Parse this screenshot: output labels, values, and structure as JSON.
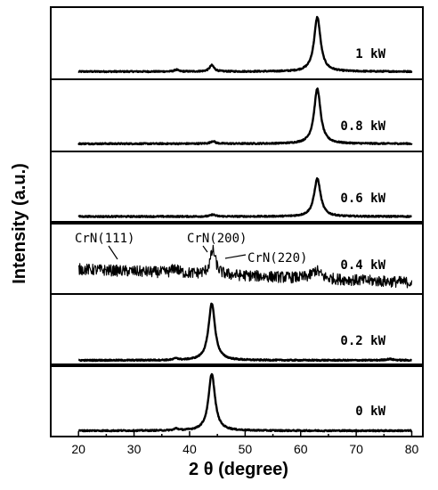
{
  "chart_data": {
    "type": "line",
    "title": "",
    "xlabel": "2 θ (degree)",
    "ylabel": "Intensity (a.u.)",
    "xlim": [
      15,
      82
    ],
    "xticks": [
      20,
      30,
      40,
      50,
      60,
      70,
      80
    ],
    "series": [
      {
        "name": "1 kW",
        "baseline": 0.08,
        "peaks": [
          {
            "center": 63.0,
            "height": 0.86,
            "width": 0.7
          },
          {
            "center": 44.0,
            "height": 0.1,
            "width": 0.5
          },
          {
            "center": 37.6,
            "height": 0.03,
            "width": 0.4
          }
        ],
        "noise": 0.01
      },
      {
        "name": "0.8 kW",
        "baseline": 0.08,
        "peaks": [
          {
            "center": 63.0,
            "height": 0.87,
            "width": 0.7
          },
          {
            "center": 44.2,
            "height": 0.04,
            "width": 0.5
          }
        ],
        "noise": 0.01
      },
      {
        "name": "0.6 kW",
        "baseline": 0.07,
        "peaks": [
          {
            "center": 63.0,
            "height": 0.6,
            "width": 0.7
          },
          {
            "center": 44.2,
            "height": 0.03,
            "width": 0.5
          }
        ],
        "noise": 0.01
      },
      {
        "name": "0.4 kW",
        "baseline": 0.35,
        "slope": -0.0035,
        "peaks": [
          {
            "center": 44.2,
            "height": 0.38,
            "width": 0.6
          },
          {
            "center": 37.4,
            "height": 0.08,
            "width": 0.6
          },
          {
            "center": 62.8,
            "height": 0.13,
            "width": 0.9
          }
        ],
        "noise": 0.09
      },
      {
        "name": "0.2 kW",
        "baseline": 0.05,
        "peaks": [
          {
            "center": 44.0,
            "height": 0.9,
            "width": 0.7
          },
          {
            "center": 37.6,
            "height": 0.03,
            "width": 0.4
          },
          {
            "center": 76.0,
            "height": 0.02,
            "width": 0.8
          }
        ],
        "noise": 0.01
      },
      {
        "name": "0 kW",
        "baseline": 0.05,
        "peaks": [
          {
            "center": 44.0,
            "height": 0.9,
            "width": 0.7
          },
          {
            "center": 37.6,
            "height": 0.03,
            "width": 0.4
          }
        ],
        "noise": 0.01
      }
    ],
    "annotations": [
      {
        "text": "CrN(111)",
        "target_x": 37.4
      },
      {
        "text": "CrN(200)",
        "target_x": 44.2
      },
      {
        "text": "CrN(220)",
        "target_x": 62.8
      }
    ],
    "grid": false,
    "legend": "panel labels at right"
  }
}
